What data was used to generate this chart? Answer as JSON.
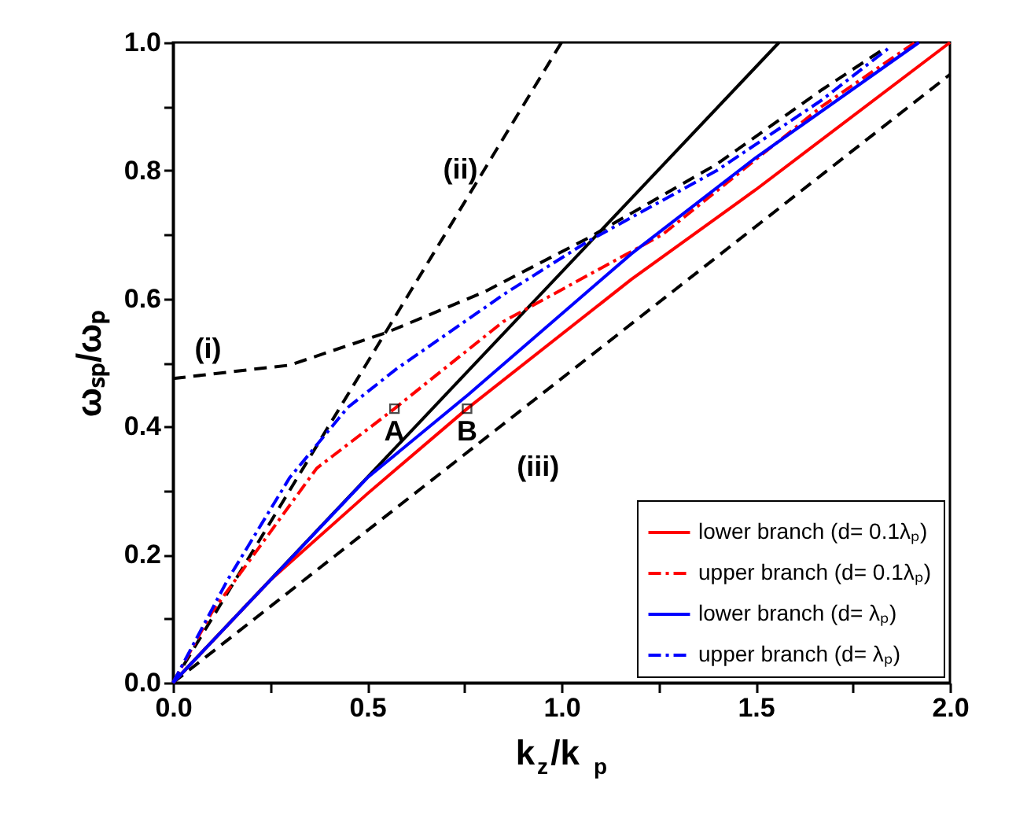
{
  "chart_data": {
    "type": "line",
    "xlabel": "k$_{z}$/k$_{p}$",
    "ylabel": "ωₛₚ/ωₚ",
    "xlim": [
      0,
      2.0
    ],
    "ylim": [
      0,
      1.0
    ],
    "xticks": [
      {
        "value": 0,
        "label": "0.0"
      },
      {
        "value": 0.25,
        "label": null
      },
      {
        "value": 0.5,
        "label": "0.5"
      },
      {
        "value": 0.75,
        "label": null
      },
      {
        "value": 1.0,
        "label": "1.0"
      },
      {
        "value": 1.25,
        "label": null
      },
      {
        "value": 1.5,
        "label": "1.5"
      },
      {
        "value": 1.75,
        "label": null
      },
      {
        "value": 2.0,
        "label": "2.0"
      }
    ],
    "yticks": [
      {
        "value": 0,
        "label": "0.0"
      },
      {
        "value": 0.1,
        "label": null
      },
      {
        "value": 0.2,
        "label": "0.2"
      },
      {
        "value": 0.3,
        "label": null
      },
      {
        "value": 0.4,
        "label": "0.4"
      },
      {
        "value": 0.5,
        "label": null
      },
      {
        "value": 0.6,
        "label": "0.6"
      },
      {
        "value": 0.7,
        "label": null
      },
      {
        "value": 0.8,
        "label": "0.8"
      },
      {
        "value": 0.9,
        "label": null
      },
      {
        "value": 1.0,
        "label": "1.0"
      }
    ],
    "grid": false,
    "legend": "bottom right",
    "series": [
      {
        "color": "#000000",
        "line_style": "dashed",
        "x": [
          0,
          0.14,
          0.3,
          0.55,
          0.8,
          1.07,
          1.4,
          1.67,
          1.83
        ],
        "values": [
          0.475,
          0.485,
          0.496,
          0.547,
          0.61,
          0.695,
          0.81,
          0.926,
          0.99
        ]
      },
      {
        "color": "#000000",
        "line_style": "dashed",
        "x": [
          0,
          1.0
        ],
        "values": [
          0,
          1.0
        ]
      },
      {
        "color": "#000000",
        "line_style": "dashed",
        "x": [
          0,
          2.0
        ],
        "values": [
          0,
          0.95
        ]
      },
      {
        "color": "#000000",
        "line_style": "solid",
        "x": [
          0,
          1.56
        ],
        "values": [
          0,
          1.0
        ]
      },
      {
        "name": "lower branch  (d= 0.1λₚ)",
        "color": "#ff0000",
        "line_style": "solid",
        "x": [
          0,
          0.25,
          0.5,
          0.757,
          1.18,
          1.5,
          2.0
        ],
        "values": [
          0,
          0.16,
          0.295,
          0.428,
          0.63,
          0.77,
          1.0
        ]
      },
      {
        "name": "upper branch (d= 0.1λₚ)",
        "color": "#ff0000",
        "line_style": "dashdot",
        "x": [
          0,
          0.1,
          0.22,
          0.37,
          0.57,
          0.85,
          1.26,
          1.67,
          1.91
        ],
        "values": [
          0,
          0.11,
          0.21,
          0.335,
          0.428,
          0.564,
          0.7,
          0.9,
          1.0
        ]
      },
      {
        "name": "lower branch   (d= λₚ)",
        "color": "#0000ff",
        "line_style": "solid",
        "x": [
          0,
          0.25,
          0.5,
          0.76,
          1.18,
          1.5,
          1.92
        ],
        "values": [
          0,
          0.16,
          0.32,
          0.45,
          0.67,
          0.82,
          1.0
        ]
      },
      {
        "name": "upper branch   (d= λₚ)",
        "color": "#0000ff",
        "line_style": "dashdot",
        "x": [
          0,
          0.14,
          0.3,
          0.45,
          0.575,
          0.86,
          1.07,
          1.4,
          1.67,
          1.84
        ],
        "values": [
          0,
          0.16,
          0.32,
          0.43,
          0.49,
          0.61,
          0.69,
          0.8,
          0.91,
          0.99
        ]
      },
      {
        "type": "scatter",
        "marker": "square",
        "color": "#000000",
        "x": [
          0.57,
          0.757
        ],
        "values": [
          0.428,
          0.428
        ]
      }
    ],
    "annotations": [
      "(i)",
      "(ii)",
      "(iii)",
      {
        "text": "A",
        "x": 0.57,
        "y": 0.428
      },
      {
        "text": "B",
        "x": 0.757,
        "y": 0.428
      }
    ]
  }
}
